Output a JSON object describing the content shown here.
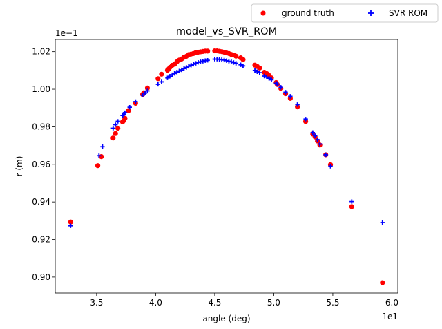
{
  "chart_data": {
    "type": "scatter",
    "title": "model_vs_SVR_ROM",
    "xlabel": "angle (deg)",
    "ylabel": "r (m)",
    "x_offset_text": "1e1",
    "y_offset_text": "1e−1",
    "xlim": [
      3.15,
      6.05
    ],
    "ylim": [
      0.8915,
      1.0265
    ],
    "xticks": [
      3.5,
      4.0,
      4.5,
      5.0,
      5.5,
      6.0
    ],
    "xtick_labels": [
      "3.5",
      "4.0",
      "4.5",
      "5.0",
      "5.5",
      "6.0"
    ],
    "yticks": [
      0.9,
      0.92,
      0.94,
      0.96,
      0.98,
      1.0,
      1.02
    ],
    "ytick_labels": [
      "0.90",
      "0.92",
      "0.94",
      "0.96",
      "0.98",
      "1.00",
      "1.02"
    ],
    "grid": false,
    "legend_position": "upper-right, outside the axes",
    "series": [
      {
        "name": "ground truth",
        "marker": "circle",
        "color": "#ff0000",
        "x": [
          3.28,
          3.51,
          3.54,
          3.64,
          3.66,
          3.68,
          3.72,
          3.73,
          3.74,
          3.77,
          3.83,
          3.89,
          3.9,
          3.93,
          4.02,
          4.05,
          4.1,
          4.11,
          4.12,
          4.14,
          4.16,
          4.18,
          4.2,
          4.22,
          4.24,
          4.26,
          4.28,
          4.3,
          4.32,
          4.34,
          4.36,
          4.38,
          4.4,
          4.42,
          4.44,
          4.5,
          4.52,
          4.54,
          4.56,
          4.58,
          4.6,
          4.62,
          4.64,
          4.66,
          4.68,
          4.72,
          4.74,
          4.84,
          4.86,
          4.88,
          4.92,
          4.94,
          4.96,
          4.98,
          5.02,
          5.03,
          5.06,
          5.1,
          5.14,
          5.2,
          5.27,
          5.33,
          5.35,
          5.37,
          5.39,
          5.44,
          5.48,
          5.66,
          5.92
        ],
        "y": [
          0.9293,
          0.9593,
          0.9641,
          0.974,
          0.9764,
          0.9792,
          0.9826,
          0.9833,
          0.9845,
          0.9886,
          0.9925,
          0.9972,
          0.9981,
          1.0006,
          1.0056,
          1.008,
          1.0101,
          1.0107,
          1.0116,
          1.0127,
          1.0133,
          1.0146,
          1.0155,
          1.0161,
          1.017,
          1.0175,
          1.0184,
          1.0187,
          1.019,
          1.0195,
          1.0197,
          1.0199,
          1.0201,
          1.0203,
          1.0203,
          1.0204,
          1.0204,
          1.0202,
          1.02,
          1.0197,
          1.0193,
          1.019,
          1.0185,
          1.0182,
          1.0176,
          1.0167,
          1.0158,
          1.0128,
          1.0121,
          1.0113,
          1.009,
          1.0083,
          1.0073,
          1.006,
          1.0035,
          1.0025,
          1.0004,
          0.9976,
          0.9951,
          0.9906,
          0.9828,
          0.9761,
          0.9746,
          0.9724,
          0.9703,
          0.9651,
          0.9598,
          0.9375,
          0.897
        ]
      },
      {
        "name": "SVR ROM",
        "marker": "plus",
        "color": "#0000ff",
        "x": [
          3.28,
          3.52,
          3.55,
          3.64,
          3.66,
          3.68,
          3.72,
          3.73,
          3.74,
          3.78,
          3.83,
          3.89,
          3.91,
          3.93,
          4.02,
          4.05,
          4.1,
          4.12,
          4.14,
          4.16,
          4.18,
          4.2,
          4.22,
          4.24,
          4.26,
          4.28,
          4.3,
          4.32,
          4.34,
          4.36,
          4.38,
          4.4,
          4.42,
          4.44,
          4.5,
          4.52,
          4.54,
          4.56,
          4.58,
          4.6,
          4.62,
          4.64,
          4.66,
          4.68,
          4.72,
          4.74,
          4.84,
          4.86,
          4.88,
          4.92,
          4.94,
          4.96,
          4.98,
          5.02,
          5.03,
          5.06,
          5.1,
          5.14,
          5.2,
          5.27,
          5.33,
          5.35,
          5.37,
          5.39,
          5.44,
          5.48,
          5.66,
          5.92
        ],
        "y": [
          0.9273,
          0.9646,
          0.9694,
          0.9792,
          0.9811,
          0.9829,
          0.986,
          0.9866,
          0.9875,
          0.9904,
          0.9934,
          0.9968,
          0.9979,
          0.9991,
          1.0026,
          1.0039,
          1.006,
          1.0069,
          1.0077,
          1.0084,
          1.0091,
          1.0097,
          1.0103,
          1.011,
          1.0116,
          1.0122,
          1.0128,
          1.0133,
          1.0138,
          1.0143,
          1.0146,
          1.0149,
          1.0152,
          1.0154,
          1.016,
          1.016,
          1.0159,
          1.0157,
          1.0155,
          1.0152,
          1.0149,
          1.0146,
          1.0142,
          1.0138,
          1.013,
          1.0124,
          1.01,
          1.0093,
          1.0088,
          1.007,
          1.0064,
          1.0058,
          1.005,
          1.0032,
          1.0027,
          1.001,
          0.9984,
          0.9962,
          0.9918,
          0.9841,
          0.9769,
          0.9752,
          0.9731,
          0.9708,
          0.9651,
          0.959,
          0.9402,
          0.929
        ]
      }
    ]
  }
}
